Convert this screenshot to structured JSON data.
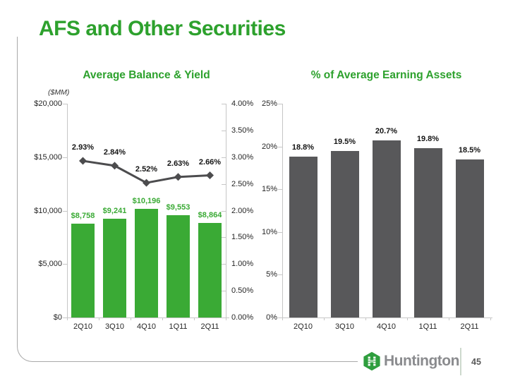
{
  "slide": {
    "title": "AFS and Other Securities"
  },
  "colors": {
    "title_green": "#2da12d",
    "bar_green": "#3aaa35",
    "bar_dark_gray": "#58585a",
    "line_gray": "#4c4c4e",
    "axis_gray": "#c6c6c6",
    "label_black": "#141414",
    "brand_gray": "#8a8b8e"
  },
  "chart_data": [
    {
      "type": "bar",
      "subtype": "combo-bar-line",
      "title": "Average Balance & Yield",
      "unit_label": "($MM)",
      "categories": [
        "2Q10",
        "3Q10",
        "4Q10",
        "1Q11",
        "2Q11"
      ],
      "series": [
        {
          "name": "Average Balance ($MM)",
          "type": "bar",
          "axis": "left",
          "values": [
            8758,
            9241,
            10196,
            9553,
            8864
          ],
          "labels": [
            "$8,758",
            "$9,241",
            "$10,196",
            "$9,553",
            "$8,864"
          ]
        },
        {
          "name": "Yield (%)",
          "type": "line",
          "axis": "right",
          "values": [
            2.93,
            2.84,
            2.52,
            2.63,
            2.66
          ],
          "labels": [
            "2.93%",
            "2.84%",
            "2.52%",
            "2.63%",
            "2.66%"
          ]
        }
      ],
      "left_axis": {
        "min": 0,
        "max": 20000,
        "ticks": [
          "$20,000",
          "$15,000",
          "$10,000",
          "$5,000",
          "$0"
        ]
      },
      "right_axis": {
        "min": 0,
        "max": 4,
        "ticks": [
          "4.00%",
          "3.50%",
          "3.00%",
          "2.50%",
          "2.00%",
          "1.50%",
          "1.00%",
          "0.50%",
          "0.00%"
        ]
      },
      "grid": false,
      "legend": "none"
    },
    {
      "type": "bar",
      "title": "% of Average Earning Assets",
      "categories": [
        "2Q10",
        "3Q10",
        "4Q10",
        "1Q11",
        "2Q11"
      ],
      "values": [
        18.8,
        19.5,
        20.7,
        19.8,
        18.5
      ],
      "labels": [
        "18.8%",
        "19.5%",
        "20.7%",
        "19.8%",
        "18.5%"
      ],
      "y_axis": {
        "min": 0,
        "max": 25,
        "ticks": [
          "25%",
          "20%",
          "15%",
          "10%",
          "5%",
          "0%"
        ]
      },
      "grid": false,
      "legend": "none"
    }
  ],
  "footer": {
    "brand_name": "Huntington",
    "page_number": "45"
  }
}
